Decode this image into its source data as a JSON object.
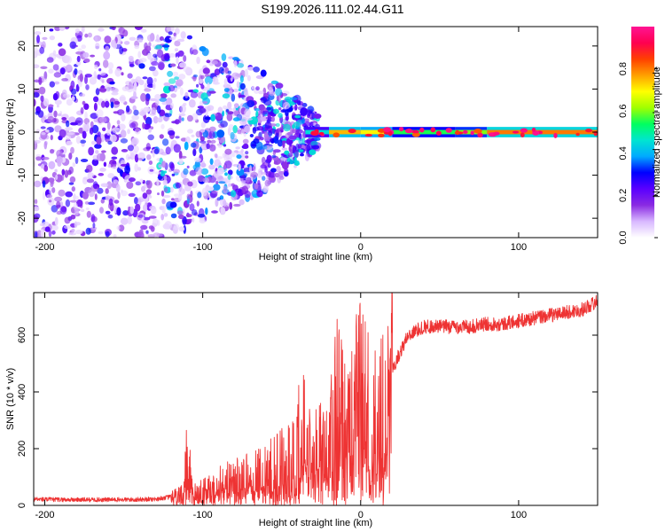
{
  "title": "S199.2026.111.02.44.G11",
  "chart_data": [
    {
      "type": "heatmap",
      "name": "spectrogram",
      "xlabel": "Height of straight line (km)",
      "ylabel": "Frequency (Hz)",
      "xlim": [
        -207,
        150
      ],
      "ylim": [
        -24.5,
        24.5
      ],
      "xticks": [
        -200,
        -100,
        0,
        100
      ],
      "yticks": [
        -20,
        -10,
        0,
        10,
        20
      ],
      "colorbar": {
        "label": "Normalized spectral amplitude",
        "range": [
          0,
          1
        ],
        "ticks": [
          "0.0",
          "0.2",
          "0.4",
          "0.6",
          "0.8"
        ],
        "colors": [
          "#ffffff",
          "#d8b8ff",
          "#8a2be2",
          "#5a00ff",
          "#0000ff",
          "#00aaff",
          "#00e5d0",
          "#00ff60",
          "#a0ff00",
          "#ffff00",
          "#ffa000",
          "#ff4000",
          "#ff0050",
          "#ff1493"
        ]
      },
      "notes": "Scattered low-amplitude noise for heights below about -30 km; a narrow high-amplitude carrier line near 0 Hz from about -35 km to 150 km."
    },
    {
      "type": "line",
      "name": "snr",
      "xlabel": "Height of straight line (km)",
      "ylabel": "SNR (10 * v/v)",
      "xlim": [
        -207,
        150
      ],
      "ylim": [
        0,
        750
      ],
      "xticks": [
        -200,
        -100,
        0,
        100
      ],
      "yticks": [
        0,
        200,
        400,
        600
      ],
      "color": "#ee3333",
      "series": [
        {
          "name": "SNR",
          "x": [
            -207,
            -190,
            -170,
            -150,
            -130,
            -120,
            -112,
            -110,
            -105,
            -100,
            -90,
            -80,
            -70,
            -60,
            -50,
            -40,
            -38,
            -30,
            -20,
            -15,
            -10,
            -5,
            0,
            5,
            10,
            15,
            20,
            25,
            30,
            40,
            50,
            60,
            70,
            80,
            90,
            100,
            110,
            120,
            130,
            140,
            150
          ],
          "y": [
            22,
            20,
            20,
            20,
            22,
            30,
            45,
            190,
            45,
            55,
            80,
            100,
            110,
            130,
            160,
            210,
            330,
            200,
            230,
            400,
            300,
            360,
            440,
            360,
            340,
            380,
            480,
            540,
            600,
            630,
            630,
            630,
            630,
            640,
            640,
            650,
            660,
            670,
            680,
            690,
            720
          ]
        }
      ]
    }
  ]
}
